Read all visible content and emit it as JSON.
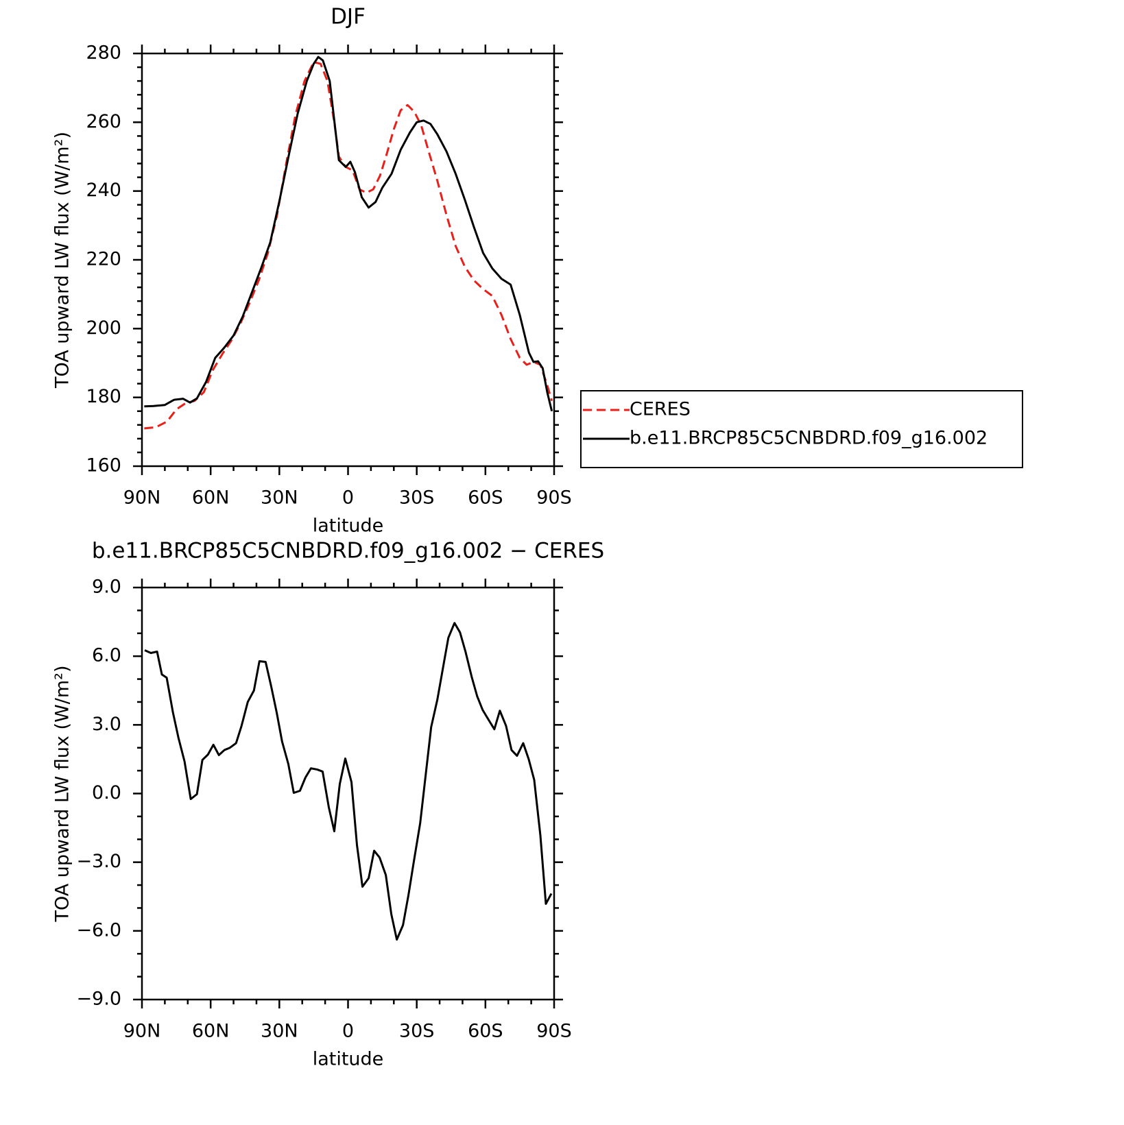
{
  "chart_data": [
    {
      "type": "line",
      "title": "DJF",
      "xlabel": "latitude",
      "ylabel": "TOA upward LW flux (W/m²)",
      "xlim": [
        90,
        -90
      ],
      "xticks": [
        {
          "value": 90,
          "label": "90N"
        },
        {
          "value": 60,
          "label": "60N"
        },
        {
          "value": 30,
          "label": "30N"
        },
        0,
        {
          "value": -30,
          "label": "30S"
        },
        {
          "value": -60,
          "label": "60S"
        },
        {
          "value": -90,
          "label": "90S"
        }
      ],
      "ylim": [
        160,
        280
      ],
      "yticks": [
        160,
        180,
        200,
        220,
        240,
        260,
        280
      ],
      "legend": "right",
      "series": [
        {
          "name": "CERES",
          "color": "#e8201a",
          "style": "dashed",
          "x": [
            89,
            84,
            79,
            75,
            71,
            67,
            63,
            59,
            55,
            51,
            47,
            43,
            39,
            35,
            31,
            27,
            23,
            19,
            15,
            12,
            9,
            6,
            4,
            1,
            -2,
            -5,
            -8,
            -11,
            -14,
            -17,
            -20,
            -23,
            -26,
            -29,
            -32,
            -35,
            -39,
            -43,
            -47,
            -51,
            -55,
            -59,
            -63,
            -67,
            -71,
            -75,
            -78,
            -81,
            -84,
            -87,
            -89
          ],
          "values": [
            171,
            171.3,
            173,
            176.5,
            178.3,
            179,
            181.5,
            188,
            192.5,
            196.5,
            201.5,
            207.5,
            214,
            222,
            233,
            248,
            262,
            272,
            277.5,
            277,
            272,
            260,
            250,
            247,
            246,
            240.5,
            239.5,
            240.5,
            244.5,
            251,
            258,
            263.5,
            265,
            263,
            259,
            252,
            243,
            233,
            224,
            218,
            214,
            211.5,
            209.5,
            204,
            197,
            191.5,
            189.5,
            190.3,
            189.5,
            183.5,
            179
          ]
        },
        {
          "name": "b.e11.BRCP85C5CNBDRD.f09_g16.002",
          "color": "#000000",
          "style": "solid",
          "x": [
            89,
            85,
            80,
            76,
            72,
            69,
            66,
            62,
            58,
            54,
            50,
            46,
            42,
            38,
            34,
            30,
            26,
            22,
            18,
            15,
            13,
            11,
            8,
            4,
            1,
            -1,
            -3,
            -6,
            -9,
            -12,
            -15,
            -19,
            -23,
            -27,
            -30,
            -33,
            -36,
            -39,
            -43,
            -47,
            -51,
            -55,
            -59,
            -63,
            -67,
            -71,
            -75,
            -79,
            -81,
            -83,
            -85,
            -87,
            -89
          ],
          "values": [
            177.4,
            177.5,
            177.8,
            179.3,
            179.6,
            178.5,
            179.7,
            184.5,
            191.5,
            194.5,
            198,
            203.5,
            210.5,
            217.5,
            225,
            237,
            250,
            262.5,
            272,
            277,
            279,
            278,
            272,
            249,
            247,
            248.5,
            245.5,
            238.2,
            235.2,
            236.8,
            241,
            245,
            252,
            257,
            260,
            260.5,
            259.5,
            256.5,
            251.5,
            245,
            237.5,
            229.5,
            222,
            217.5,
            214.5,
            212.8,
            204,
            193,
            190.3,
            190.5,
            188.5,
            181.5,
            176
          ]
        }
      ]
    },
    {
      "type": "line",
      "title": "b.e11.BRCP85C5CNBDRD.f09_g16.002 − CERES",
      "xlabel": "latitude",
      "ylabel": "TOA upward LW flux (W/m²)",
      "xlim": [
        90,
        -90
      ],
      "xticks": [
        {
          "value": 90,
          "label": "90N"
        },
        {
          "value": 60,
          "label": "60N"
        },
        {
          "value": 30,
          "label": "30N"
        },
        0,
        {
          "value": -30,
          "label": "30S"
        },
        {
          "value": -60,
          "label": "60S"
        },
        {
          "value": -90,
          "label": "90S"
        }
      ],
      "ylim": [
        -9,
        9
      ],
      "yticks": [
        {
          "value": -9,
          "label": "−9.0"
        },
        {
          "value": -6,
          "label": "−6.0"
        },
        {
          "value": -3,
          "label": "−3.0"
        },
        {
          "value": 0,
          "label": "0.0"
        },
        {
          "value": 3,
          "label": "3.0"
        },
        {
          "value": 6,
          "label": "6.0"
        },
        {
          "value": 9,
          "label": "9.0"
        }
      ],
      "color": "#000000",
      "x": [
        88.8,
        86.1,
        83.4,
        81.3,
        79.2,
        76.5,
        74.1,
        71.4,
        68.7,
        66,
        63.6,
        61.2,
        58.8,
        56.4,
        54,
        51.6,
        48.9,
        46.5,
        43.8,
        41.1,
        38.7,
        36,
        33.6,
        31.2,
        28.8,
        26.1,
        23.7,
        21,
        18.6,
        16.2,
        13.5,
        11.1,
        8.4,
        6,
        3.6,
        1.2,
        -1.5,
        -3.9,
        -6.3,
        -9,
        -11.4,
        -13.8,
        -16.5,
        -18.9,
        -21.3,
        -24,
        -26.4,
        -28.8,
        -31.5,
        -33.9,
        -36.3,
        -39,
        -41.4,
        -43.8,
        -46.5,
        -48.9,
        -51.3,
        -54,
        -56.4,
        -58.8,
        -61.5,
        -63.9,
        -66.3,
        -69,
        -71.4,
        -73.8,
        -76.5,
        -78.9,
        -81.3,
        -84,
        -86.4,
        -88.8
      ],
      "values": [
        6.26,
        6.14,
        6.2,
        5.2,
        5.06,
        3.56,
        2.45,
        1.4,
        -0.24,
        -0.03,
        1.47,
        1.7,
        2.13,
        1.68,
        1.9,
        2.0,
        2.2,
        2.96,
        4.0,
        4.5,
        5.78,
        5.75,
        4.7,
        3.56,
        2.27,
        1.3,
        0.03,
        0.12,
        0.7,
        1.1,
        1.05,
        0.96,
        -0.6,
        -1.65,
        0.42,
        1.53,
        0.5,
        -2.25,
        -4.07,
        -3.7,
        -2.5,
        -2.8,
        -3.56,
        -5.27,
        -6.38,
        -5.75,
        -4.43,
        -2.93,
        -1.3,
        0.8,
        2.9,
        4.1,
        5.45,
        6.8,
        7.45,
        7.04,
        6.2,
        5.1,
        4.25,
        3.65,
        3.2,
        2.81,
        3.62,
        2.96,
        1.9,
        1.65,
        2.2,
        1.5,
        0.6,
        -1.83,
        -4.82,
        -4.37
      ]
    }
  ]
}
